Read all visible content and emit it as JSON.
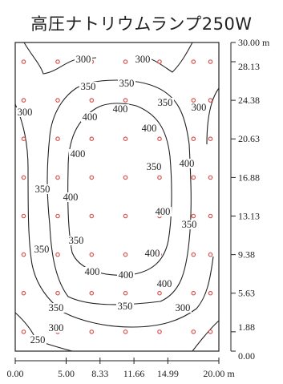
{
  "title": "高圧ナトリウムランプ250W",
  "chart_data": {
    "type": "contour",
    "x_unit": "m",
    "y_unit": "m",
    "x_ticks": [
      "0.00",
      "5.00",
      "8.33",
      "11.66",
      "14.99",
      "20.00"
    ],
    "y_ticks": [
      "30.00",
      "28.13",
      "24.38",
      "20.63",
      "16.88",
      "13.13",
      "9.38",
      "5.63",
      "1.88",
      "0.00"
    ],
    "xlim": [
      0,
      20
    ],
    "ylim": [
      0,
      30
    ],
    "contour_labels": [
      "300",
      "300",
      "350",
      "350",
      "300",
      "350",
      "300",
      "400",
      "400",
      "400",
      "400",
      "350",
      "400",
      "350",
      "400",
      "400",
      "350",
      "350",
      "400",
      "400",
      "400",
      "400",
      "350",
      "350",
      "300",
      "350",
      "300",
      "250"
    ],
    "grid_points_x": [
      0.83,
      4.17,
      7.5,
      10.83,
      14.17,
      17.5,
      19.17
    ],
    "grid_points_y": [
      28.13,
      24.38,
      20.63,
      16.88,
      13.13,
      9.38,
      5.63,
      1.88
    ]
  },
  "colors": {
    "point": "#d9534f",
    "line": "#222222"
  }
}
